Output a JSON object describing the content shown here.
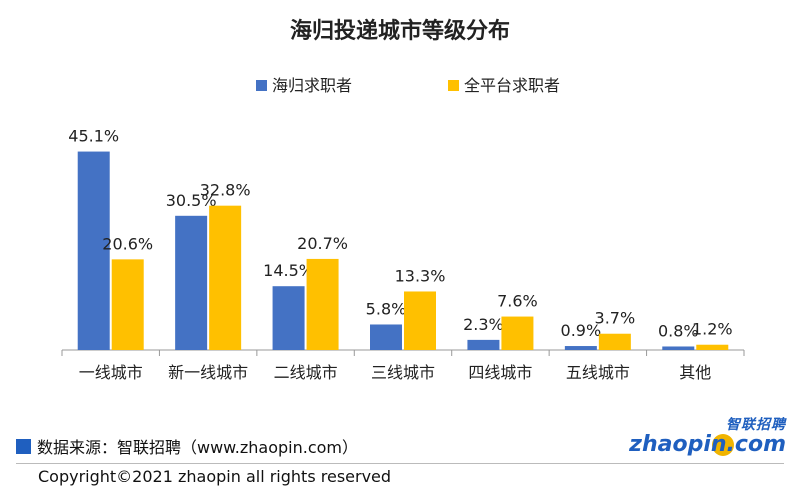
{
  "chart_data": {
    "type": "bar",
    "title": "海归投递城市等级分布",
    "categories": [
      "一线城市",
      "新一线城市",
      "二线城市",
      "三线城市",
      "四线城市",
      "五线城市",
      "其他"
    ],
    "series": [
      {
        "name": "海归求职者",
        "color": "#4472c4",
        "values": [
          45.1,
          30.5,
          14.5,
          5.8,
          2.3,
          0.9,
          0.8
        ],
        "labels": [
          "45.1%",
          "30.5%",
          "14.5%",
          "5.8%",
          "2.3%",
          "0.9%",
          "0.8%"
        ]
      },
      {
        "name": "全平台求职者",
        "color": "#ffc000",
        "values": [
          20.6,
          32.8,
          20.7,
          13.3,
          7.6,
          3.7,
          1.2
        ],
        "labels": [
          "20.6%",
          "32.8%",
          "20.7%",
          "13.3%",
          "7.6%",
          "3.7%",
          "1.2%"
        ]
      }
    ],
    "ylim": [
      0,
      50
    ],
    "grid": false,
    "legend_position": "top"
  },
  "footer": {
    "source": "数据来源：智联招聘（www.zhaopin.com）",
    "copyright": "Copyright©2021 zhaopin all rights reserved",
    "source_color": "#1f5fbf"
  },
  "logo": {
    "text_cn": "智联招聘",
    "text_en": "zhaopin.com"
  }
}
